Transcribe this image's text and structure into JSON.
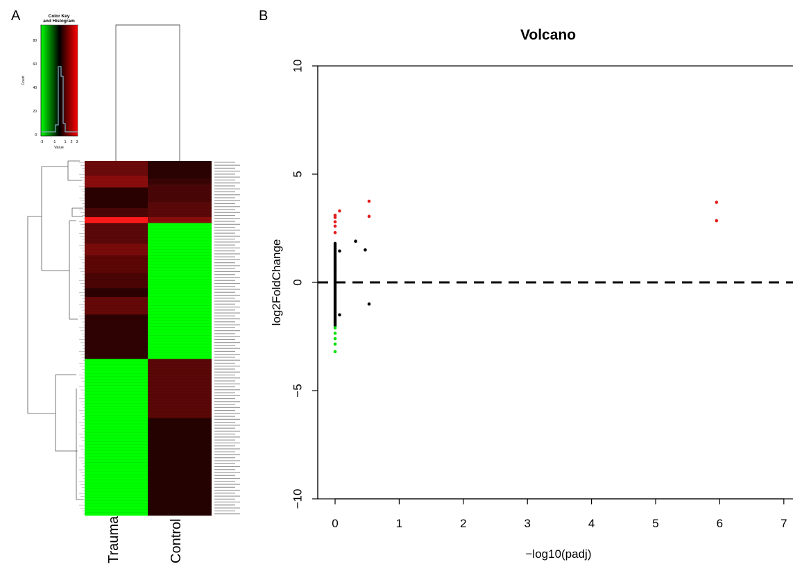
{
  "panel_a": {
    "letter": "A",
    "color_key": {
      "title_line1": "Color Key",
      "title_line2": "and Histogram",
      "xlabel": "Value",
      "ylabel": "Count",
      "x_ticks": [
        "-3",
        "-1",
        "1",
        "2",
        "3"
      ],
      "y_ticks": [
        "0",
        "20",
        "40",
        "60",
        "80"
      ],
      "colors": {
        "low": "#00ff00",
        "mid": "#000000",
        "high": "#ff0000"
      }
    },
    "columns": [
      "Trauma",
      "Control"
    ],
    "row_label_prefix": "mo-miR-"
  },
  "panel_b": {
    "letter": "B"
  },
  "chart_data": {
    "type": "scatter",
    "title": "Volcano",
    "xlabel": "−log10(padj)",
    "ylabel": "log2FoldChange",
    "xlim": [
      -0.3,
      7.1
    ],
    "ylim": [
      -10,
      10
    ],
    "x_ticks": [
      "0",
      "1",
      "2",
      "3",
      "4",
      "5",
      "6",
      "7"
    ],
    "y_ticks": [
      "−10",
      "−5",
      "0",
      "5",
      "10"
    ],
    "reference_line": {
      "y": 0,
      "style": "dashed",
      "color": "#000000"
    },
    "series": [
      {
        "color": "#e31a1c",
        "points": [
          [
            0.0,
            2.3
          ],
          [
            0.0,
            2.6
          ],
          [
            0.0,
            2.8
          ],
          [
            0.0,
            3.0
          ],
          [
            0.0,
            3.1
          ],
          [
            0.07,
            3.3
          ],
          [
            0.53,
            3.75
          ],
          [
            0.53,
            3.05
          ],
          [
            5.95,
            3.7
          ],
          [
            5.95,
            2.85
          ]
        ]
      },
      {
        "color": "#000000",
        "points": [
          [
            0.32,
            1.9
          ],
          [
            0.47,
            1.5
          ],
          [
            0.07,
            1.45
          ],
          [
            0.07,
            -1.5
          ],
          [
            0.53,
            -1.0
          ]
        ]
      },
      {
        "color": "#00e000",
        "points": [
          [
            0.0,
            -2.1
          ],
          [
            0.0,
            -2.35
          ],
          [
            0.0,
            -2.6
          ],
          [
            0.0,
            -2.85
          ],
          [
            0.0,
            -3.2
          ]
        ]
      }
    ],
    "dense_column": {
      "x": 0.0,
      "y_min": -2.0,
      "y_max": 1.8,
      "color": "#000000"
    }
  }
}
